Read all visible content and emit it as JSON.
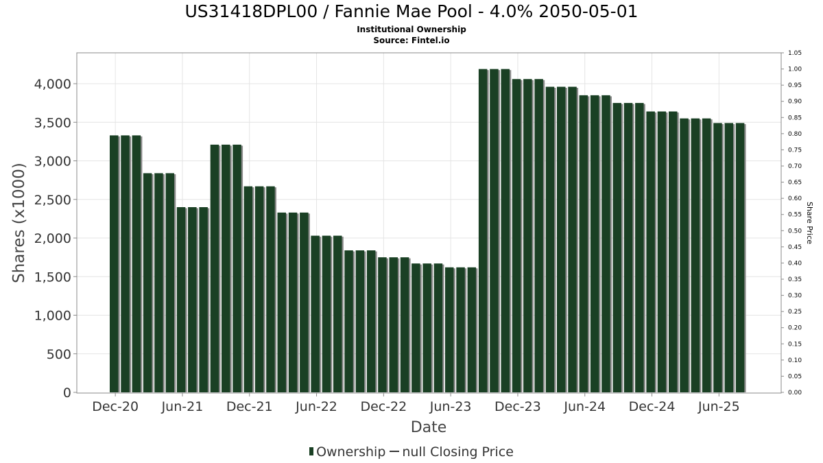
{
  "header": {
    "title": "US31418DPL00 / Fannie Mae Pool - 4.0% 2050-05-01",
    "subtitle": "Institutional Ownership",
    "source": "Source: Fintel.io"
  },
  "legend": {
    "ownership_label": "Ownership",
    "price_label": "null Closing Price"
  },
  "colors": {
    "bar": "#1a4024",
    "bar_shadow": "#8a8a8a",
    "grid": "#e4e4e4",
    "axis": "#888888"
  },
  "chart_data": {
    "type": "bar",
    "title": "US31418DPL00 / Fannie Mae Pool - 4.0% 2050-05-01",
    "xlabel": "Date",
    "ylabel": "Shares (x1000)",
    "y2label": "Share Price",
    "ylim": [
      0,
      4400
    ],
    "y2lim": [
      0,
      1.05
    ],
    "yticks": [
      "0",
      "500",
      "1,000",
      "1,500",
      "2,000",
      "2,500",
      "3,000",
      "3,500",
      "4,000"
    ],
    "y2ticks": [
      "0.00",
      "0.05",
      "0.10",
      "0.15",
      "0.20",
      "0.25",
      "0.30",
      "0.35",
      "0.40",
      "0.45",
      "0.50",
      "0.55",
      "0.60",
      "0.65",
      "0.70",
      "0.75",
      "0.80",
      "0.85",
      "0.90",
      "0.95",
      "1.00",
      "1.05"
    ],
    "xticks": [
      {
        "label": "Dec-20",
        "index": 0.5
      },
      {
        "label": "Jun-21",
        "index": 6.5
      },
      {
        "label": "Dec-21",
        "index": 12.5
      },
      {
        "label": "Jun-22",
        "index": 18.5
      },
      {
        "label": "Dec-22",
        "index": 24.5
      },
      {
        "label": "Jun-23",
        "index": 30.5
      },
      {
        "label": "Dec-23",
        "index": 36.5
      },
      {
        "label": "Jun-24",
        "index": 42.5
      },
      {
        "label": "Dec-24",
        "index": 48.5
      },
      {
        "label": "Jun-25",
        "index": 54.5
      }
    ],
    "grid": true,
    "legend_position": "bottom",
    "series": [
      {
        "name": "Ownership",
        "values": [
          3330,
          3330,
          3330,
          2840,
          2840,
          2840,
          2400,
          2400,
          2400,
          3210,
          3210,
          3210,
          2670,
          2670,
          2670,
          2330,
          2330,
          2330,
          2030,
          2030,
          2030,
          1840,
          1840,
          1840,
          1750,
          1750,
          1750,
          1670,
          1670,
          1670,
          1620,
          1620,
          1620,
          4190,
          4190,
          4190,
          4060,
          4060,
          4060,
          3960,
          3960,
          3960,
          3850,
          3850,
          3850,
          3750,
          3750,
          3750,
          3640,
          3640,
          3640,
          3550,
          3550,
          3550,
          3490,
          3490,
          3490
        ]
      }
    ]
  }
}
